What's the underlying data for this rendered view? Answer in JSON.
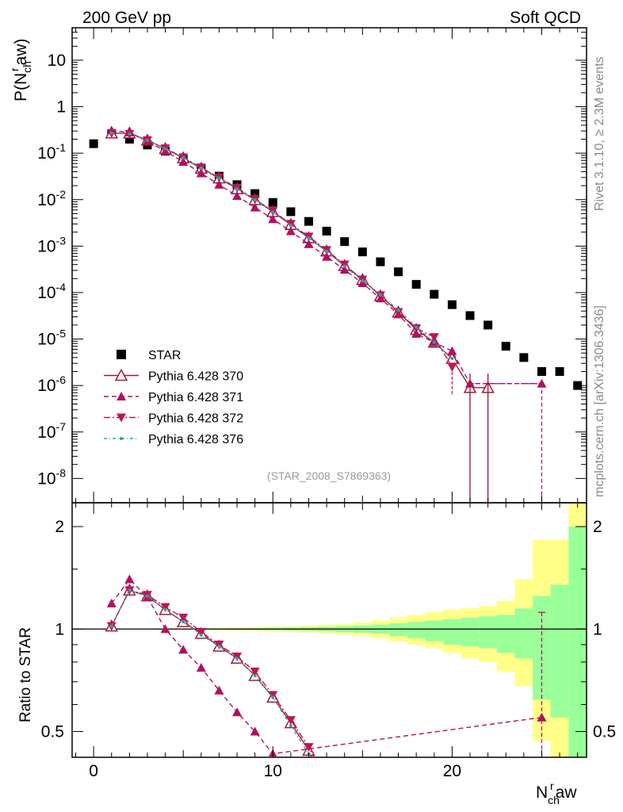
{
  "header": {
    "left": "200 GeV pp",
    "right": "Soft QCD"
  },
  "side_labels": {
    "rivet": "Rivet 3.1.10, ≥ 2.3M events",
    "mcplots": "mcplots.cern.ch [arXiv:1306.3436]"
  },
  "analysis_label": "(STAR_2008_S7869363)",
  "colors": {
    "star": "#000000",
    "p370": "#a01a3a",
    "p371": "#b01060",
    "p372": "#c01458",
    "p376": "#20a8a8",
    "band_inner": "#99ff99",
    "band_outer": "#ffff88"
  },
  "chart_data": [
    {
      "type": "scatter",
      "panel": "main",
      "title": "",
      "ylabel": "P(N_ch^r aw)",
      "xlabel": "N_ch^r aw",
      "log_y": true,
      "xlim": [
        -1.2,
        27.5
      ],
      "ylim": [
        3e-09,
        50
      ],
      "y_ticks": [
        {
          "value": 1e-08,
          "base": "10",
          "exp": "-8"
        },
        {
          "value": 1e-07,
          "base": "10",
          "exp": "-7"
        },
        {
          "value": 1e-06,
          "base": "10",
          "exp": "-6"
        },
        {
          "value": 1e-05,
          "base": "10",
          "exp": "-5"
        },
        {
          "value": 0.0001,
          "base": "10",
          "exp": "-4"
        },
        {
          "value": 0.001,
          "base": "10",
          "exp": "-3"
        },
        {
          "value": 0.01,
          "base": "10",
          "exp": "-2"
        },
        {
          "value": 0.1,
          "base": "10",
          "exp": "-1"
        },
        {
          "value": 1,
          "base": "1",
          "exp": ""
        },
        {
          "value": 10,
          "base": "10",
          "exp": ""
        }
      ],
      "x_ticks": [
        0,
        10,
        20
      ],
      "legend": {
        "position": "lower-left"
      },
      "series": [
        {
          "name": "STAR",
          "style": "star",
          "x": [
            0,
            1,
            2,
            3,
            4,
            5,
            6,
            7,
            8,
            9,
            10,
            11,
            12,
            13,
            14,
            15,
            16,
            17,
            18,
            19,
            20,
            21,
            22,
            23,
            24,
            25,
            26,
            27
          ],
          "y": [
            0.16,
            0.26,
            0.2,
            0.15,
            0.11,
            0.075,
            0.048,
            0.032,
            0.021,
            0.0135,
            0.0087,
            0.0055,
            0.0034,
            0.0021,
            0.00125,
            0.00075,
            0.00046,
            0.00028,
            0.00015,
            9.2e-05,
            5.5e-05,
            3.2e-05,
            2e-05,
            7e-06,
            4e-06,
            2e-06,
            2e-06,
            1e-06
          ]
        },
        {
          "name": "Pythia 6.428 370",
          "style": "p370",
          "x": [
            1,
            2,
            3,
            4,
            5,
            6,
            7,
            8,
            9,
            10,
            11,
            12,
            13,
            14,
            15,
            16,
            17,
            18,
            19,
            20,
            21,
            22
          ],
          "y": [
            0.27,
            0.27,
            0.19,
            0.125,
            0.079,
            0.047,
            0.029,
            0.017,
            0.0099,
            0.0055,
            0.0029,
            0.0015,
            0.00078,
            0.00038,
            0.00019,
            8.5e-05,
            3.8e-05,
            1.6e-05,
            8.5e-06,
            3.8e-06,
            9e-07,
            9e-07
          ]
        },
        {
          "name": "Pythia 6.428 371",
          "style": "p371",
          "x": [
            1,
            2,
            3,
            4,
            5,
            6,
            7,
            8,
            9,
            10,
            11,
            12,
            13,
            14,
            15,
            16,
            17,
            18,
            19,
            20,
            21,
            25
          ],
          "y": [
            0.31,
            0.28,
            0.18,
            0.11,
            0.065,
            0.037,
            0.021,
            0.012,
            0.0068,
            0.0038,
            0.0021,
            0.0011,
            0.00059,
            0.00031,
            0.00016,
            7.5e-05,
            3.4e-05,
            1.3e-05,
            8.5e-06,
            5.5e-06,
            1.1e-06,
            1.1e-06
          ]
        },
        {
          "name": "Pythia 6.428 372",
          "style": "p372",
          "x": [
            1,
            2,
            3,
            4,
            5,
            6,
            7,
            8,
            9,
            10,
            11,
            12,
            13,
            14,
            15,
            16,
            17,
            18,
            19,
            20
          ],
          "y": [
            0.27,
            0.26,
            0.19,
            0.127,
            0.081,
            0.049,
            0.03,
            0.018,
            0.0102,
            0.0057,
            0.003,
            0.0016,
            0.00082,
            0.0004,
            0.00019,
            8.7e-05,
            3.8e-05,
            1.7e-05,
            1.1e-05,
            2.5e-06
          ]
        },
        {
          "name": "Pythia 6.428 376",
          "style": "p376",
          "x": [
            1,
            2,
            3,
            4,
            5,
            6,
            7,
            8,
            9,
            10,
            11,
            12,
            13,
            14,
            15,
            16,
            17,
            18,
            19,
            20
          ],
          "y": [
            0.27,
            0.26,
            0.19,
            0.125,
            0.08,
            0.048,
            0.029,
            0.0172,
            0.0099,
            0.0054,
            0.0028,
            0.0015,
            0.00077,
            0.00037,
            0.00018,
            9e-05,
            4.2e-05,
            1.8e-05,
            8.5e-06,
            3.8e-06
          ]
        }
      ]
    },
    {
      "type": "line",
      "panel": "ratio",
      "title": "",
      "ylabel": "Ratio to STAR",
      "log_y": true,
      "xlim": [
        -1.2,
        27.5
      ],
      "ylim": [
        0.42,
        2.35
      ],
      "y_ticks": [
        0.5,
        1,
        2
      ],
      "x_ticks": [
        0,
        10,
        20
      ],
      "band": {
        "x_edges": [
          3.5,
          4.5,
          5.5,
          6.5,
          7.5,
          8.5,
          9.5,
          10.5,
          11.5,
          12.5,
          13.5,
          14.5,
          15.5,
          16.5,
          17.5,
          18.5,
          19.5,
          20.5,
          21.5,
          22.5,
          23.5,
          24.5,
          25.5,
          26.5,
          27.5
        ],
        "inner_hi": [
          1.003,
          1.003,
          1.004,
          1.005,
          1.006,
          1.007,
          1.008,
          1.01,
          1.012,
          1.015,
          1.02,
          1.025,
          1.03,
          1.04,
          1.05,
          1.06,
          1.07,
          1.08,
          1.09,
          1.1,
          1.15,
          1.25,
          1.35,
          2.0
        ],
        "inner_lo": [
          0.997,
          0.997,
          0.996,
          0.995,
          0.994,
          0.993,
          0.992,
          0.99,
          0.988,
          0.985,
          0.98,
          0.975,
          0.97,
          0.955,
          0.94,
          0.92,
          0.9,
          0.89,
          0.88,
          0.85,
          0.82,
          0.62,
          0.55,
          0.4
        ],
        "outer_hi": [
          1.005,
          1.005,
          1.006,
          1.008,
          1.01,
          1.012,
          1.015,
          1.018,
          1.022,
          1.028,
          1.035,
          1.045,
          1.06,
          1.08,
          1.1,
          1.12,
          1.14,
          1.15,
          1.17,
          1.21,
          1.4,
          1.83,
          1.83,
          2.35
        ],
        "outer_lo": [
          0.995,
          0.995,
          0.994,
          0.992,
          0.99,
          0.988,
          0.985,
          0.982,
          0.978,
          0.972,
          0.965,
          0.955,
          0.94,
          0.92,
          0.9,
          0.88,
          0.85,
          0.82,
          0.8,
          0.75,
          0.68,
          0.47,
          0.4,
          0.4
        ]
      },
      "series": [
        {
          "name": "Pythia 6.428 370",
          "style": "p370",
          "x": [
            1,
            2,
            3,
            4,
            5,
            6,
            7,
            8,
            9,
            10,
            11,
            12,
            13
          ],
          "y": [
            1.02,
            1.3,
            1.25,
            1.14,
            1.05,
            0.97,
            0.89,
            0.82,
            0.73,
            0.63,
            0.53,
            0.44,
            0.35
          ]
        },
        {
          "name": "Pythia 6.428 371",
          "style": "p371",
          "x": [
            1,
            2,
            3,
            4,
            5,
            6,
            7,
            8,
            9,
            10,
            25
          ],
          "y": [
            1.19,
            1.4,
            1.24,
            1.0,
            0.87,
            0.77,
            0.66,
            0.57,
            0.5,
            0.43,
            0.55
          ]
        },
        {
          "name": "Pythia 6.428 372",
          "style": "p372",
          "x": [
            1,
            2,
            3,
            4,
            5,
            6,
            7,
            8,
            9,
            10,
            11,
            12,
            13
          ],
          "y": [
            1.02,
            1.3,
            1.26,
            1.16,
            1.08,
            0.98,
            0.9,
            0.83,
            0.75,
            0.64,
            0.54,
            0.45,
            0.36
          ]
        },
        {
          "name": "Pythia 6.428 376",
          "style": "p376",
          "x": [
            1,
            2,
            3,
            4,
            5,
            6,
            7,
            8,
            9,
            10,
            11,
            12,
            13
          ],
          "y": [
            1.02,
            1.3,
            1.25,
            1.14,
            1.05,
            0.96,
            0.89,
            0.82,
            0.73,
            0.63,
            0.52,
            0.43,
            0.34
          ]
        }
      ]
    }
  ]
}
